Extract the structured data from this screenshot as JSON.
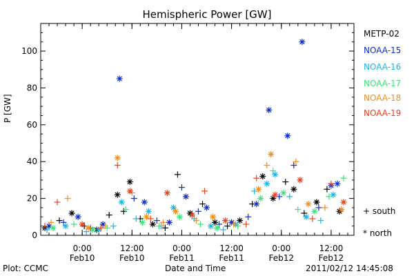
{
  "chart_data": {
    "type": "scatter",
    "title": "Hemispheric Power [GW]",
    "ylabel": "P [GW]",
    "xlabel": "Date and Time",
    "ylim": [
      0,
      115
    ],
    "xlim": [
      "2011-02-09T14:00",
      "2011-02-12T17:30"
    ],
    "yticks": [
      0,
      20,
      40,
      60,
      80,
      100
    ],
    "xticks": [
      {
        "x": "2011-02-10T00:00",
        "label": "0:00",
        "sublabel": "Feb10"
      },
      {
        "x": "2011-02-10T12:00",
        "label": "12:00",
        "sublabel": "Feb10"
      },
      {
        "x": "2011-02-11T00:00",
        "label": "0:00",
        "sublabel": "Feb11"
      },
      {
        "x": "2011-02-11T12:00",
        "label": "12:00",
        "sublabel": "Feb11"
      },
      {
        "x": "2011-02-12T00:00",
        "label": "0:00",
        "sublabel": "Feb12"
      },
      {
        "x": "2011-02-12T12:00",
        "label": "12:00",
        "sublabel": "Feb12"
      }
    ],
    "grid": false,
    "legend_position": "right",
    "markers": {
      "south": "+",
      "north": "*"
    },
    "series": [
      {
        "name": "METP-02",
        "color": "#000000",
        "points": [
          {
            "x": "2011-02-09T15:00",
            "y": 4,
            "h": "north"
          },
          {
            "x": "2011-02-09T18:30",
            "y": 8,
            "h": "south"
          },
          {
            "x": "2011-02-09T21:30",
            "y": 12,
            "h": "north"
          },
          {
            "x": "2011-02-10T00:30",
            "y": 5,
            "h": "south"
          },
          {
            "x": "2011-02-10T03:30",
            "y": 3,
            "h": "north"
          },
          {
            "x": "2011-02-10T06:30",
            "y": 11,
            "h": "south"
          },
          {
            "x": "2011-02-10T08:30",
            "y": 22,
            "h": "north"
          },
          {
            "x": "2011-02-10T10:00",
            "y": 13,
            "h": "south"
          },
          {
            "x": "2011-02-10T11:30",
            "y": 29,
            "h": "north"
          },
          {
            "x": "2011-02-10T14:00",
            "y": 9,
            "h": "south"
          },
          {
            "x": "2011-02-10T17:00",
            "y": 6,
            "h": "north"
          },
          {
            "x": "2011-02-10T20:00",
            "y": 4,
            "h": "south"
          },
          {
            "x": "2011-02-10T23:00",
            "y": 33,
            "h": "south"
          },
          {
            "x": "2011-02-11T02:00",
            "y": 12,
            "h": "north"
          },
          {
            "x": "2011-02-11T05:00",
            "y": 17,
            "h": "south"
          },
          {
            "x": "2011-02-11T08:00",
            "y": 7,
            "h": "north"
          },
          {
            "x": "2011-02-11T11:00",
            "y": 5,
            "h": "south"
          },
          {
            "x": "2011-02-11T14:00",
            "y": 8,
            "h": "north"
          },
          {
            "x": "2011-02-11T17:00",
            "y": 17,
            "h": "south"
          },
          {
            "x": "2011-02-11T19:30",
            "y": 32,
            "h": "north"
          },
          {
            "x": "2011-02-11T22:00",
            "y": 20,
            "h": "north"
          },
          {
            "x": "2011-02-12T01:00",
            "y": 29,
            "h": "south"
          },
          {
            "x": "2011-02-12T03:00",
            "y": 25,
            "h": "north"
          },
          {
            "x": "2011-02-12T05:30",
            "y": 12,
            "h": "south"
          },
          {
            "x": "2011-02-12T08:30",
            "y": 18,
            "h": "north"
          },
          {
            "x": "2011-02-12T11:00",
            "y": 25,
            "h": "south"
          },
          {
            "x": "2011-02-12T14:00",
            "y": 13,
            "h": "north"
          }
        ]
      },
      {
        "name": "NOAA-15",
        "color": "#0a2bd6",
        "points": [
          {
            "x": "2011-02-09T16:00",
            "y": 5,
            "h": "north"
          },
          {
            "x": "2011-02-09T19:30",
            "y": 7,
            "h": "south"
          },
          {
            "x": "2011-02-09T23:00",
            "y": 10,
            "h": "north"
          },
          {
            "x": "2011-02-10T02:00",
            "y": 4,
            "h": "south"
          },
          {
            "x": "2011-02-10T05:00",
            "y": 6,
            "h": "north"
          },
          {
            "x": "2011-02-10T09:00",
            "y": 85,
            "h": "north"
          },
          {
            "x": "2011-02-10T12:30",
            "y": 20,
            "h": "south"
          },
          {
            "x": "2011-02-10T15:00",
            "y": 18,
            "h": "north"
          },
          {
            "x": "2011-02-10T18:00",
            "y": 8,
            "h": "south"
          },
          {
            "x": "2011-02-10T21:00",
            "y": 7,
            "h": "north"
          },
          {
            "x": "2011-02-11T00:00",
            "y": 26,
            "h": "south"
          },
          {
            "x": "2011-02-11T01:00",
            "y": 21,
            "h": "north"
          },
          {
            "x": "2011-02-11T04:00",
            "y": 13,
            "h": "south"
          },
          {
            "x": "2011-02-11T06:00",
            "y": 15,
            "h": "north"
          },
          {
            "x": "2011-02-11T09:00",
            "y": 6,
            "h": "south"
          },
          {
            "x": "2011-02-11T12:00",
            "y": 7,
            "h": "north"
          },
          {
            "x": "2011-02-11T16:00",
            "y": 10,
            "h": "south"
          },
          {
            "x": "2011-02-11T18:00",
            "y": 17,
            "h": "north"
          },
          {
            "x": "2011-02-11T21:00",
            "y": 68,
            "h": "north"
          },
          {
            "x": "2011-02-11T23:30",
            "y": 21,
            "h": "south"
          },
          {
            "x": "2011-02-12T01:30",
            "y": 54,
            "h": "north"
          },
          {
            "x": "2011-02-12T03:00",
            "y": 38,
            "h": "south"
          },
          {
            "x": "2011-02-12T05:00",
            "y": 105,
            "h": "north"
          },
          {
            "x": "2011-02-12T09:00",
            "y": 15,
            "h": "south"
          },
          {
            "x": "2011-02-12T12:00",
            "y": 27,
            "h": "north"
          },
          {
            "x": "2011-02-12T13:30",
            "y": 28,
            "h": "north"
          }
        ]
      },
      {
        "name": "NOAA-16",
        "color": "#19b3e6",
        "points": [
          {
            "x": "2011-02-09T15:30",
            "y": 3,
            "h": "south"
          },
          {
            "x": "2011-02-09T20:00",
            "y": 5,
            "h": "north"
          },
          {
            "x": "2011-02-10T01:00",
            "y": 2,
            "h": "south"
          },
          {
            "x": "2011-02-10T04:00",
            "y": 3,
            "h": "north"
          },
          {
            "x": "2011-02-10T07:30",
            "y": 5,
            "h": "south"
          },
          {
            "x": "2011-02-10T09:30",
            "y": 18,
            "h": "north"
          },
          {
            "x": "2011-02-10T13:00",
            "y": 9,
            "h": "south"
          },
          {
            "x": "2011-02-10T16:00",
            "y": 13,
            "h": "north"
          },
          {
            "x": "2011-02-10T19:00",
            "y": 5,
            "h": "south"
          },
          {
            "x": "2011-02-10T22:00",
            "y": 15,
            "h": "north"
          },
          {
            "x": "2011-02-11T03:00",
            "y": 9,
            "h": "south"
          },
          {
            "x": "2011-02-11T07:00",
            "y": 5,
            "h": "north"
          },
          {
            "x": "2011-02-11T10:00",
            "y": 3,
            "h": "south"
          },
          {
            "x": "2011-02-11T13:00",
            "y": 6,
            "h": "north"
          },
          {
            "x": "2011-02-11T17:30",
            "y": 24,
            "h": "south"
          },
          {
            "x": "2011-02-11T20:30",
            "y": 28,
            "h": "north"
          },
          {
            "x": "2011-02-11T22:30",
            "y": 33,
            "h": "north"
          },
          {
            "x": "2011-02-12T02:00",
            "y": 21,
            "h": "south"
          },
          {
            "x": "2011-02-12T06:00",
            "y": 10,
            "h": "north"
          },
          {
            "x": "2011-02-12T09:30",
            "y": 8,
            "h": "south"
          },
          {
            "x": "2011-02-12T12:30",
            "y": 22,
            "h": "north"
          }
        ]
      },
      {
        "name": "NOAA-17",
        "color": "#3de07a",
        "points": [
          {
            "x": "2011-02-09T17:00",
            "y": 4,
            "h": "north"
          },
          {
            "x": "2011-02-09T22:00",
            "y": 6,
            "h": "south"
          },
          {
            "x": "2011-02-10T02:30",
            "y": 3,
            "h": "north"
          },
          {
            "x": "2011-02-10T06:00",
            "y": 4,
            "h": "south"
          },
          {
            "x": "2011-02-10T10:30",
            "y": 14,
            "h": "south"
          },
          {
            "x": "2011-02-10T14:30",
            "y": 7,
            "h": "north"
          },
          {
            "x": "2011-02-10T18:30",
            "y": 5,
            "h": "south"
          },
          {
            "x": "2011-02-10T23:30",
            "y": 10,
            "h": "north"
          },
          {
            "x": "2011-02-11T04:30",
            "y": 6,
            "h": "south"
          },
          {
            "x": "2011-02-11T08:30",
            "y": 4,
            "h": "north"
          },
          {
            "x": "2011-02-11T13:30",
            "y": 5,
            "h": "south"
          },
          {
            "x": "2011-02-11T19:00",
            "y": 20,
            "h": "north"
          },
          {
            "x": "2011-02-11T22:00",
            "y": 35,
            "h": "south"
          },
          {
            "x": "2011-02-12T00:30",
            "y": 23,
            "h": "north"
          },
          {
            "x": "2011-02-12T04:00",
            "y": 14,
            "h": "south"
          },
          {
            "x": "2011-02-12T08:00",
            "y": 13,
            "h": "north"
          },
          {
            "x": "2011-02-12T11:30",
            "y": 21,
            "h": "south"
          },
          {
            "x": "2011-02-12T15:00",
            "y": 31,
            "h": "south"
          }
        ]
      },
      {
        "name": "NOAA-18",
        "color": "#f08c1a",
        "points": [
          {
            "x": "2011-02-09T16:30",
            "y": 7,
            "h": "south"
          },
          {
            "x": "2011-02-09T20:30",
            "y": 20,
            "h": "south"
          },
          {
            "x": "2011-02-10T01:30",
            "y": 4,
            "h": "north"
          },
          {
            "x": "2011-02-10T05:30",
            "y": 5,
            "h": "south"
          },
          {
            "x": "2011-02-10T08:30",
            "y": 42,
            "h": "north"
          },
          {
            "x": "2011-02-10T12:00",
            "y": 23,
            "h": "south"
          },
          {
            "x": "2011-02-10T15:30",
            "y": 10,
            "h": "north"
          },
          {
            "x": "2011-02-10T19:30",
            "y": 7,
            "h": "south"
          },
          {
            "x": "2011-02-10T22:30",
            "y": 13,
            "h": "north"
          },
          {
            "x": "2011-02-11T03:30",
            "y": 8,
            "h": "south"
          },
          {
            "x": "2011-02-11T07:30",
            "y": 10,
            "h": "north"
          },
          {
            "x": "2011-02-11T12:30",
            "y": 6,
            "h": "south"
          },
          {
            "x": "2011-02-11T18:30",
            "y": 25,
            "h": "north"
          },
          {
            "x": "2011-02-11T20:30",
            "y": 38,
            "h": "south"
          },
          {
            "x": "2011-02-11T21:30",
            "y": 44,
            "h": "north"
          },
          {
            "x": "2011-02-12T03:30",
            "y": 40,
            "h": "south"
          },
          {
            "x": "2011-02-12T06:30",
            "y": 17,
            "h": "north"
          },
          {
            "x": "2011-02-12T10:30",
            "y": 15,
            "h": "south"
          },
          {
            "x": "2011-02-12T14:30",
            "y": 14,
            "h": "north"
          }
        ]
      },
      {
        "name": "NOAA-19",
        "color": "#e8401c",
        "points": [
          {
            "x": "2011-02-09T15:00",
            "y": 5,
            "h": "south"
          },
          {
            "x": "2011-02-09T18:00",
            "y": 18,
            "h": "south"
          },
          {
            "x": "2011-02-10T00:00",
            "y": 6,
            "h": "north"
          },
          {
            "x": "2011-02-10T04:30",
            "y": 4,
            "h": "south"
          },
          {
            "x": "2011-02-10T08:30",
            "y": 38,
            "h": "south"
          },
          {
            "x": "2011-02-10T11:30",
            "y": 24,
            "h": "north"
          },
          {
            "x": "2011-02-10T16:30",
            "y": 9,
            "h": "south"
          },
          {
            "x": "2011-02-10T20:30",
            "y": 23,
            "h": "north"
          },
          {
            "x": "2011-02-11T02:30",
            "y": 11,
            "h": "north"
          },
          {
            "x": "2011-02-11T05:30",
            "y": 24,
            "h": "south"
          },
          {
            "x": "2011-02-11T10:30",
            "y": 8,
            "h": "north"
          },
          {
            "x": "2011-02-11T15:30",
            "y": 6,
            "h": "south"
          },
          {
            "x": "2011-02-11T18:00",
            "y": 31,
            "h": "south"
          },
          {
            "x": "2011-02-11T22:30",
            "y": 22,
            "h": "north"
          },
          {
            "x": "2011-02-12T04:30",
            "y": 30,
            "h": "north"
          },
          {
            "x": "2011-02-12T07:30",
            "y": 9,
            "h": "south"
          },
          {
            "x": "2011-02-12T12:00",
            "y": 28,
            "h": "south"
          },
          {
            "x": "2011-02-12T15:00",
            "y": 18,
            "h": "north"
          }
        ]
      }
    ]
  },
  "footer": {
    "plot_by": "Plot: CCMC",
    "timestamp": "2011/02/12 14:45:08"
  },
  "symbol_legend": {
    "south": "+ south",
    "north": "* north"
  }
}
